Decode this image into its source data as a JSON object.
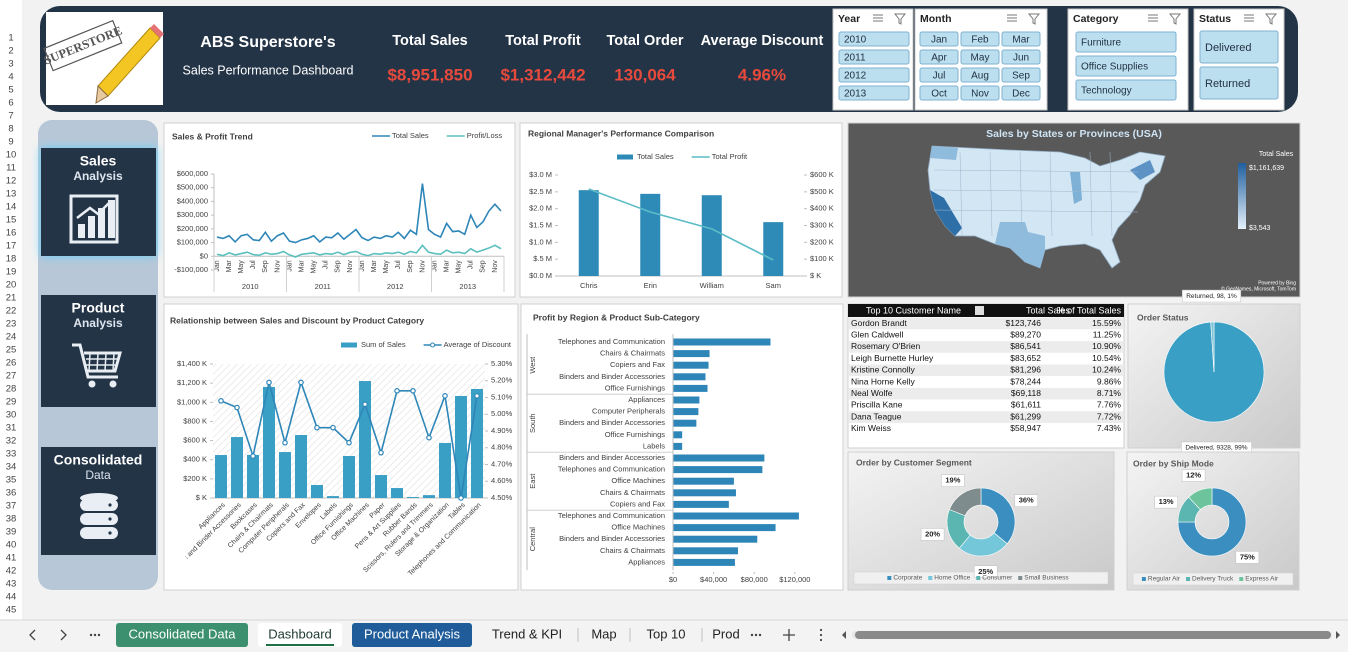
{
  "row_headers": [
    1,
    2,
    3,
    4,
    5,
    6,
    7,
    8,
    9,
    10,
    11,
    12,
    13,
    14,
    15,
    16,
    17,
    18,
    19,
    20,
    21,
    22,
    23,
    24,
    25,
    26,
    27,
    28,
    29,
    30,
    31,
    32,
    33,
    34,
    35,
    36,
    37,
    38,
    39,
    40,
    41,
    42,
    43,
    44,
    45
  ],
  "header": {
    "logo": "SUPERSTORE",
    "title": "ABS Superstore's",
    "subtitle": "Sales Performance Dashboard"
  },
  "kpis": [
    {
      "label": "Total Sales",
      "value": "$8,951,850"
    },
    {
      "label": "Total Profit",
      "value": "$1,312,442"
    },
    {
      "label": "Total Order",
      "value": "130,064"
    },
    {
      "label": "Average Discount",
      "value": "4.96%"
    }
  ],
  "slicers": [
    {
      "title": "Year",
      "items": [
        "2010",
        "2011",
        "2012",
        "2013"
      ]
    },
    {
      "title": "Month",
      "items": [
        "Jan",
        "Feb",
        "Mar",
        "Apr",
        "May",
        "Jun",
        "Jul",
        "Aug",
        "Sep",
        "Oct",
        "Nov",
        "Dec"
      ]
    },
    {
      "title": "Category",
      "items": [
        "Furniture",
        "Office Supplies",
        "Technology"
      ]
    },
    {
      "title": "Status",
      "items": [
        "Delivered",
        "Returned"
      ]
    }
  ],
  "nav": [
    {
      "title": "Sales",
      "subtitle": "Analysis"
    },
    {
      "title": "Product",
      "subtitle": "Analysis"
    },
    {
      "title": "Consolidated",
      "subtitle": "Data"
    }
  ],
  "chart_data": [
    {
      "type": "line",
      "title": "Sales & Profit Trend",
      "categories": [
        "Jan",
        null,
        "Mar",
        null,
        "May",
        null,
        "Jul",
        null,
        "Sep",
        null,
        "Nov",
        null,
        "Jan",
        null,
        "Mar",
        null,
        "May",
        null,
        "Jul",
        null,
        "Sep",
        null,
        "Nov",
        null,
        "Jan",
        null,
        "Mar",
        null,
        "May",
        null,
        "Jul",
        null,
        "Sep",
        null,
        "Nov",
        null,
        "Jan",
        null,
        "Mar",
        null,
        "May",
        null,
        "Jul",
        null,
        "Sep",
        null,
        "Nov",
        null
      ],
      "groups": [
        "2010",
        "2011",
        "2012",
        "2013"
      ],
      "series": [
        {
          "name": "Total Sales",
          "color": "#2e86b8",
          "values": [
            140000,
            130000,
            150000,
            105000,
            150000,
            160000,
            120000,
            115000,
            175000,
            110000,
            150000,
            170000,
            110000,
            100000,
            120000,
            130000,
            150000,
            105000,
            140000,
            135000,
            170000,
            125000,
            160000,
            195000,
            135000,
            115000,
            140000,
            130000,
            150000,
            140000,
            175000,
            130000,
            190000,
            160000,
            530000,
            195000,
            160000,
            140000,
            240000,
            180000,
            185000,
            160000,
            300000,
            210000,
            250000,
            330000,
            380000,
            330000
          ]
        },
        {
          "name": "Profit/Loss",
          "color": "#5bc0be",
          "values": [
            15000,
            5000,
            25000,
            10000,
            20000,
            30000,
            12000,
            8000,
            25000,
            15000,
            20000,
            35000,
            10000,
            -5000,
            15000,
            20000,
            25000,
            10000,
            20000,
            15000,
            30000,
            12000,
            28000,
            35000,
            15000,
            5000,
            20000,
            15000,
            25000,
            20000,
            30000,
            15000,
            35000,
            25000,
            80000,
            30000,
            20000,
            15000,
            45000,
            25000,
            30000,
            20000,
            55000,
            30000,
            45000,
            60000,
            80000,
            55000
          ]
        }
      ],
      "ylim": [
        -100000,
        600000
      ],
      "yticks": [
        {
          "value": -100000,
          "label": "-$100,000"
        },
        {
          "value": 0,
          "label": "$0"
        },
        {
          "value": 100000,
          "label": "$100,000"
        },
        {
          "value": 200000,
          "label": "$200,000"
        },
        {
          "value": 300000,
          "label": "$300,000"
        },
        {
          "value": 400000,
          "label": "$400,000"
        },
        {
          "value": 500000,
          "label": "$500,000"
        },
        {
          "value": 600000,
          "label": "$600,000"
        }
      ],
      "legend": "top"
    },
    {
      "type": "bar-line",
      "title": "Regional Manager's Performance Comparison",
      "categories": [
        "Chris",
        "Erin",
        "William",
        "Sam"
      ],
      "series": [
        {
          "name": "Total Sales",
          "type": "bar",
          "color": "#2e8bb8",
          "values": [
            2550000,
            2440000,
            2400000,
            1600000
          ]
        },
        {
          "name": "Total Profit",
          "type": "line",
          "axis": "y2",
          "color": "#5bbcc6",
          "values": [
            517000,
            380000,
            280000,
            95000
          ]
        }
      ],
      "ylim": [
        0,
        3000000
      ],
      "yticks": [
        {
          "value": 0,
          "label": "$0.0 M"
        },
        {
          "value": 500000,
          "label": "$.5 M"
        },
        {
          "value": 1000000,
          "label": "$1.0 M"
        },
        {
          "value": 1500000,
          "label": "$1.5 M"
        },
        {
          "value": 2000000,
          "label": "$2.0 M"
        },
        {
          "value": 2500000,
          "label": "$2.5 M"
        },
        {
          "value": 3000000,
          "label": "$3.0 M"
        }
      ],
      "y2lim": [
        0,
        600000
      ],
      "y2ticks": [
        {
          "value": 0,
          "label": "$ K"
        },
        {
          "value": 100000,
          "label": "$100 K"
        },
        {
          "value": 200000,
          "label": "$200 K"
        },
        {
          "value": 300000,
          "label": "$300 K"
        },
        {
          "value": 400000,
          "label": "$400 K"
        },
        {
          "value": 500000,
          "label": "$500 K"
        },
        {
          "value": 600000,
          "label": "$600 K"
        }
      ],
      "legend": "top"
    },
    {
      "type": "map",
      "title": "Sales by States or Provinces (USA)",
      "legend_title": "Total Sales",
      "max_label": "$1,161,639",
      "min_label": "$3,543",
      "credits": [
        "Powered by Bing",
        "© GeoNames, Microsoft, TomTom"
      ]
    },
    {
      "type": "bar-line",
      "title": "Relationship between Sales and Discount by Product Category",
      "categories": [
        "Appliances",
        "Binders and Binder Accessories",
        "Bookcases",
        "Chairs & Chairmats",
        "Computer Peripherals",
        "Copiers and Fax",
        "Envelopes",
        "Labels",
        "Office Furnishings",
        "Office Machines",
        "Paper",
        "Pens & Art Supplies",
        "Rubber Bands",
        "Scissors, Rulers and Trimmers",
        "Storage & Organization",
        "Tables",
        "Telephones and Communication"
      ],
      "series": [
        {
          "name": "Sum of Sales",
          "type": "bar",
          "color": "#3a9fc4",
          "values": [
            449000,
            637000,
            450000,
            1160000,
            480000,
            658000,
            136000,
            20000,
            439000,
            1222000,
            240000,
            104000,
            10000,
            30000,
            575000,
            1066000,
            1139000
          ]
        },
        {
          "name": "Average of Discount",
          "type": "line",
          "axis": "y2",
          "color": "#2e86b8",
          "marker": "circle",
          "values": [
            5.08,
            5.04,
            4.75,
            5.19,
            4.83,
            5.19,
            4.92,
            4.92,
            4.83,
            5.06,
            4.77,
            5.14,
            5.14,
            4.86,
            5.11,
            4.5,
            5.11
          ]
        }
      ],
      "ylim": [
        0,
        1400000
      ],
      "yticks": [
        {
          "value": 0,
          "label": "$ K"
        },
        {
          "value": 200000,
          "label": "$200 K"
        },
        {
          "value": 400000,
          "label": "$400 K"
        },
        {
          "value": 600000,
          "label": "$600 K"
        },
        {
          "value": 800000,
          "label": "$800 K"
        },
        {
          "value": 1000000,
          "label": "$1,000 K"
        },
        {
          "value": 1200000,
          "label": "$1,200 K"
        },
        {
          "value": 1400000,
          "label": "$1,400 K"
        }
      ],
      "y2lim": [
        4.5,
        5.3
      ],
      "y2ticks": [
        {
          "value": 4.5,
          "label": "4.50%"
        },
        {
          "value": 4.6,
          "label": "4.60%"
        },
        {
          "value": 4.7,
          "label": "4.70%"
        },
        {
          "value": 4.8,
          "label": "4.80%"
        },
        {
          "value": 4.9,
          "label": "4.90%"
        },
        {
          "value": 5.0,
          "label": "5.00%"
        },
        {
          "value": 5.1,
          "label": "5.10%"
        },
        {
          "value": 5.2,
          "label": "5.20%"
        },
        {
          "value": 5.3,
          "label": "5.30%"
        }
      ],
      "legend": "top"
    },
    {
      "type": "hbar",
      "title": "Profit by Region & Product Sub-Category",
      "color": "#2e86b8",
      "groups": [
        {
          "name": "West",
          "categories": [
            "Telephones and Communication",
            "Chairs & Chairmats",
            "Copiers and Fax",
            "Binders and Binder Accessories",
            "Office Furnishings"
          ],
          "values": [
            96000,
            36000,
            35000,
            32000,
            34000
          ]
        },
        {
          "name": "South",
          "categories": [
            "Appliances",
            "Computer Peripherals",
            "Binders and Binder Accessories",
            "Office Furnishings",
            "Labels"
          ],
          "values": [
            26000,
            25000,
            23000,
            9000,
            9000
          ]
        },
        {
          "name": "East",
          "categories": [
            "Binders and Binder Accessories",
            "Telephones and Communication",
            "Office Machines",
            "Chairs & Chairmats",
            "Copiers and Fax"
          ],
          "values": [
            90000,
            88000,
            60000,
            62000,
            55000
          ]
        },
        {
          "name": "Central",
          "categories": [
            "Telephones and Communication",
            "Office Machines",
            "Binders and Binder Accessories",
            "Chairs & Chairmats",
            "Appliances"
          ],
          "values": [
            124000,
            101000,
            83000,
            64000,
            61000
          ]
        }
      ],
      "xlim": [
        0,
        130000
      ],
      "xticks": [
        {
          "value": 0,
          "label": "$0"
        },
        {
          "value": 40000,
          "label": "$40,000"
        },
        {
          "value": 80000,
          "label": "$80,000"
        },
        {
          "value": 120000,
          "label": "$120,000"
        }
      ]
    },
    {
      "type": "pie",
      "title": "Order Status",
      "categories": [
        "Delivered",
        "Returned"
      ],
      "values": [
        9328,
        98
      ],
      "value_labels": [
        "Delivered, 9328, 99%",
        "Returned, 98, 1%"
      ],
      "colors": [
        "#3a9fc4",
        "#7cc3d6"
      ]
    },
    {
      "type": "donut",
      "title": "Order by Customer Segment",
      "categories": [
        "Corporate",
        "Home Office",
        "Consumer",
        "Small Business"
      ],
      "values": [
        36,
        25,
        20,
        19
      ],
      "value_labels": [
        "36%",
        "25%",
        "20%",
        "19%"
      ],
      "colors": [
        "#3a8fc0",
        "#74c7d8",
        "#5bb5b0",
        "#7f8c8d"
      ],
      "legend": "bottom"
    },
    {
      "type": "donut",
      "title": "Order by Ship Mode",
      "categories": [
        "Regular Air",
        "Delivery Truck",
        "Express Air"
      ],
      "values": [
        75,
        13,
        12
      ],
      "value_labels": [
        "75%",
        "13%",
        "12%"
      ],
      "colors": [
        "#3a8fc0",
        "#5bb5b0",
        "#6cc39c"
      ],
      "legend": "bottom"
    }
  ],
  "table": {
    "columns": [
      "Top 10 Customer Name",
      "Total Sales",
      "% of Total Sales"
    ],
    "rows": [
      [
        "Gordon Brandt",
        "$123,746",
        "15.59%"
      ],
      [
        "Glen Caldwell",
        "$89,270",
        "11.25%"
      ],
      [
        "Rosemary O'Brien",
        "$86,541",
        "10.90%"
      ],
      [
        "Leigh Burnette Hurley",
        "$83,652",
        "10.54%"
      ],
      [
        "Kristine Connolly",
        "$81,296",
        "10.24%"
      ],
      [
        "Nina Horne Kelly",
        "$78,244",
        "9.86%"
      ],
      [
        "Neal Wolfe",
        "$69,118",
        "8.71%"
      ],
      [
        "Priscilla Kane",
        "$61,611",
        "7.76%"
      ],
      [
        "Dana Teague",
        "$61,299",
        "7.72%"
      ],
      [
        "Kim Weiss",
        "$58,947",
        "7.43%"
      ]
    ]
  },
  "tabs": [
    "Consolidated Data",
    "Dashboard",
    "Product Analysis",
    "Trend & KPI",
    "Map",
    "Top 10",
    "Prod"
  ]
}
